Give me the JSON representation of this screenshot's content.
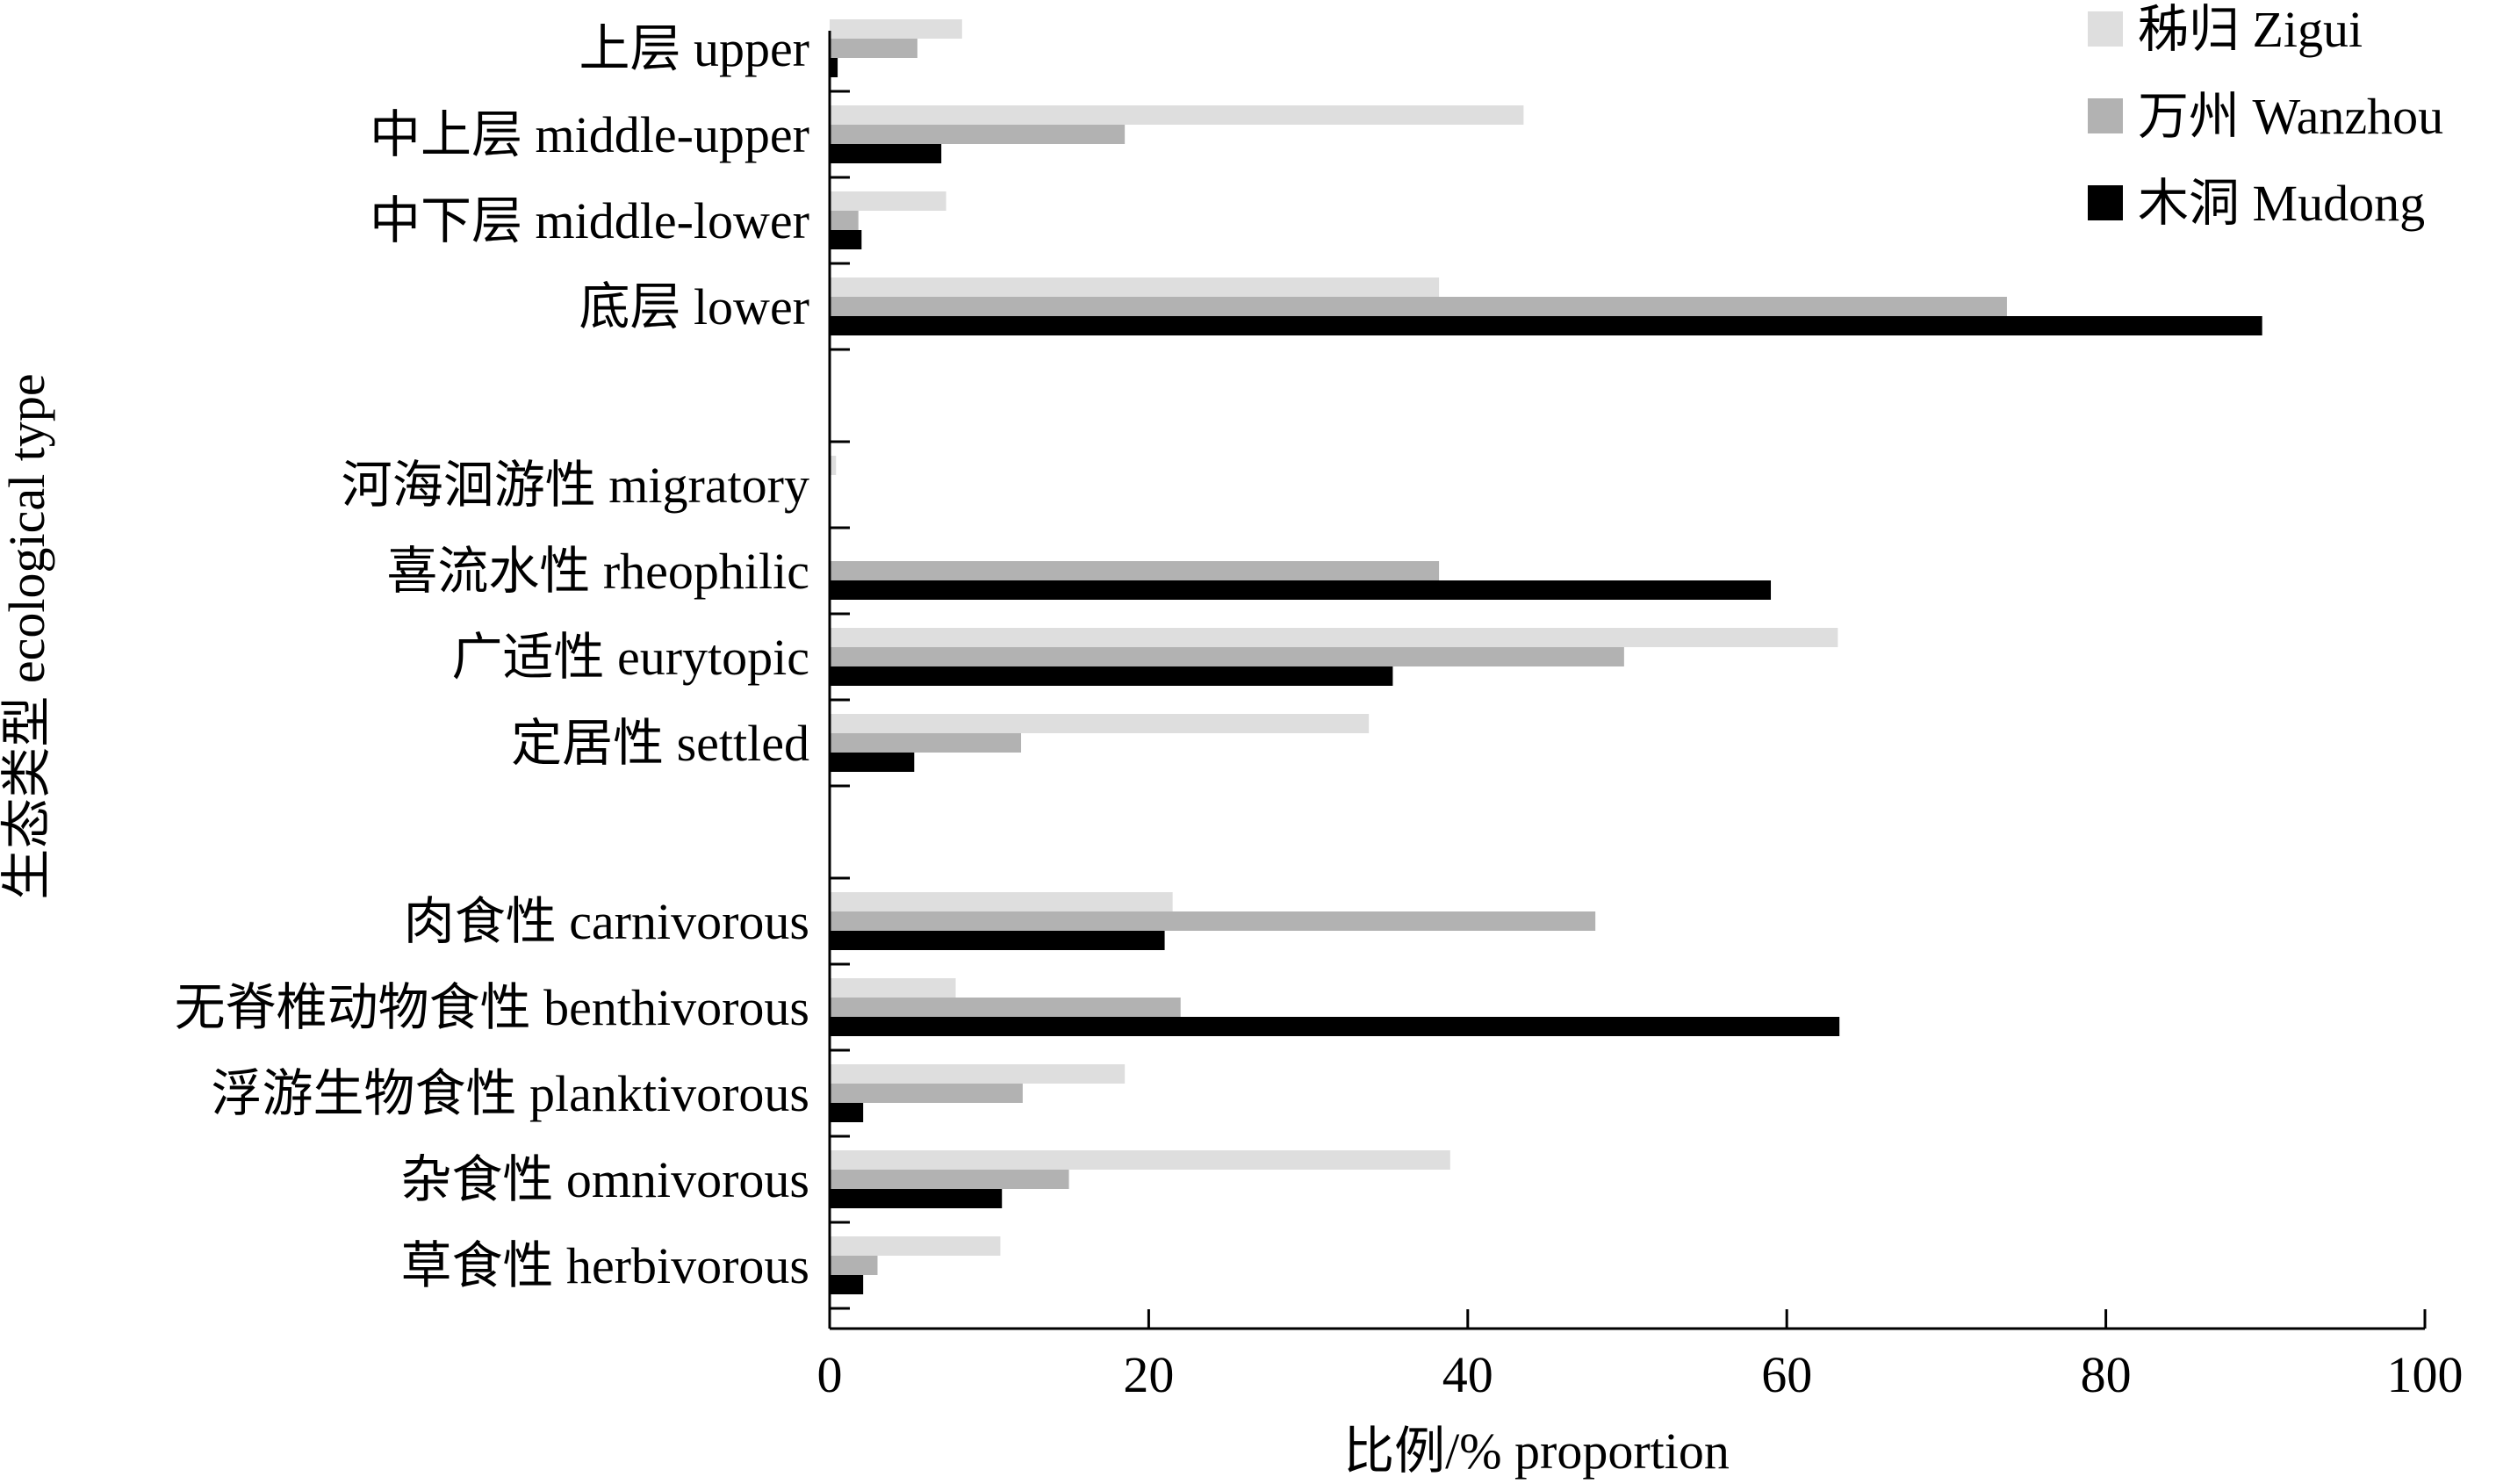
{
  "chart_data": {
    "type": "bar",
    "orientation": "horizontal",
    "title": "",
    "xlabel": "比例/% proportion",
    "ylabel": "生态类型 ecological type",
    "xlim": [
      0,
      100
    ],
    "xticks": [
      0,
      20,
      40,
      60,
      80,
      100
    ],
    "grid": false,
    "legend_position": "top-right",
    "categories": [
      "上层 upper",
      "中上层 middle-upper",
      "中下层 middle-lower",
      "底层 lower",
      "河海洄游性 migratory",
      "喜流水性 rheophilic",
      "广适性 eurytopic",
      "定居性 settled",
      "肉食性 carnivorous",
      "无脊椎动物食性 benthivorous",
      "浮游生物食性 planktivorous",
      "杂食性 omnivorous",
      "草食性 herbivorous"
    ],
    "groups": [
      {
        "categories": [
          0,
          1,
          2,
          3
        ]
      },
      {
        "categories": [
          4,
          5,
          6,
          7
        ]
      },
      {
        "categories": [
          8,
          9,
          10,
          11,
          12
        ]
      }
    ],
    "series": [
      {
        "name": "秭归 Zigui",
        "color": "#dedede",
        "values": [
          8.3,
          43.5,
          7.3,
          38.2,
          0.4,
          0.0,
          63.2,
          33.8,
          21.5,
          7.9,
          18.5,
          38.9,
          10.7
        ]
      },
      {
        "name": "万州 Wanzhou",
        "color": "#b2b2b2",
        "values": [
          5.5,
          18.5,
          1.8,
          73.8,
          0.0,
          38.2,
          49.8,
          12.0,
          48.0,
          22.0,
          12.1,
          15.0,
          3.0
        ]
      },
      {
        "name": "木洞 Mudong",
        "color": "#000000",
        "values": [
          0.5,
          7.0,
          2.0,
          89.8,
          0.0,
          59.0,
          35.3,
          5.3,
          21.0,
          63.3,
          2.1,
          10.8,
          2.1
        ]
      }
    ]
  }
}
